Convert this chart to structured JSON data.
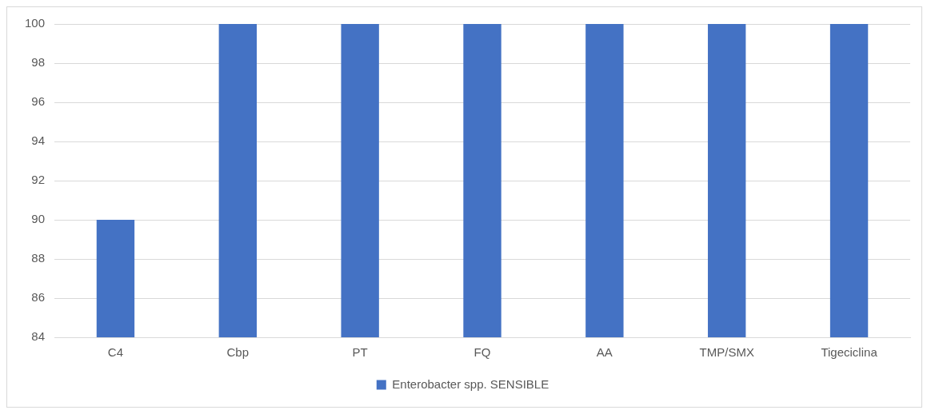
{
  "chart_data": {
    "type": "bar",
    "categories": [
      "C4",
      "Cbp",
      "PT",
      "FQ",
      "AA",
      "TMP/SMX",
      "Tigeciclina"
    ],
    "series": [
      {
        "name": "Enterobacter spp. SENSIBLE",
        "color": "#4472c4",
        "values": [
          90,
          100,
          100,
          100,
          100,
          100,
          100
        ]
      }
    ],
    "ylim": [
      84,
      100
    ],
    "yticks": [
      84,
      86,
      88,
      90,
      92,
      94,
      96,
      98,
      100
    ],
    "grid": "y",
    "legend": "bottom"
  }
}
